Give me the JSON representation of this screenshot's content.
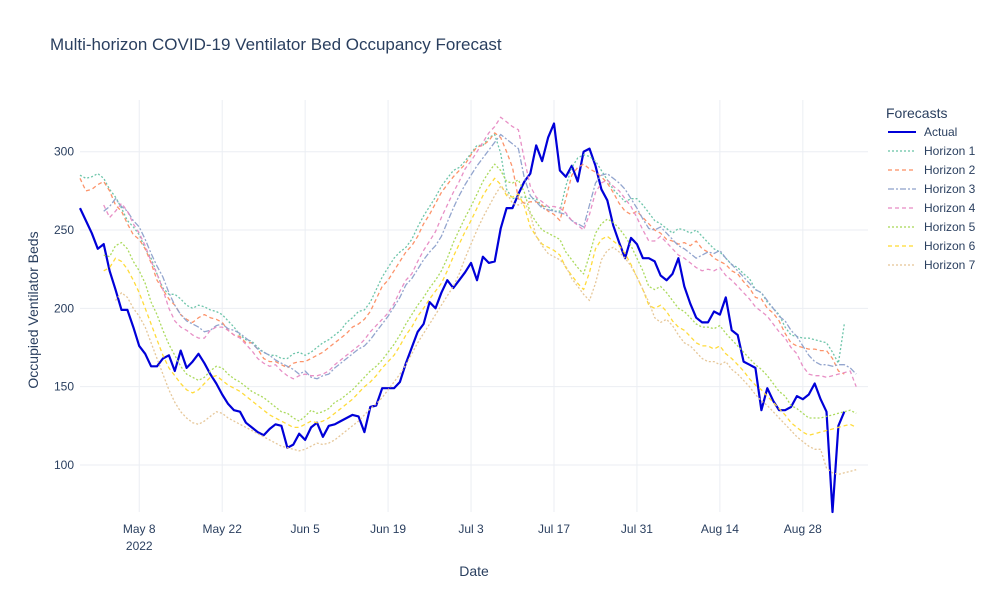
{
  "chart_data": {
    "type": "line",
    "title": "Multi-horizon COVID-19 Ventilator Bed Occupancy Forecast",
    "xlabel": "Date",
    "ylabel": "Occupied Ventilator Beds",
    "x_range": [
      "2022-04-28",
      "2022-09-08"
    ],
    "ylim": [
      70,
      333
    ],
    "x_ticks": [
      {
        "date": "2022-05-08",
        "label": "May 8",
        "sublabel": "2022"
      },
      {
        "date": "2022-05-22",
        "label": "May 22",
        "sublabel": ""
      },
      {
        "date": "2022-06-05",
        "label": "Jun 5",
        "sublabel": ""
      },
      {
        "date": "2022-06-19",
        "label": "Jun 19",
        "sublabel": ""
      },
      {
        "date": "2022-07-03",
        "label": "Jul 3",
        "sublabel": ""
      },
      {
        "date": "2022-07-17",
        "label": "Jul 17",
        "sublabel": ""
      },
      {
        "date": "2022-07-31",
        "label": "Jul 31",
        "sublabel": ""
      },
      {
        "date": "2022-08-14",
        "label": "Aug 14",
        "sublabel": ""
      },
      {
        "date": "2022-08-28",
        "label": "Aug 28",
        "sublabel": ""
      }
    ],
    "y_ticks": [
      100,
      150,
      200,
      250,
      300
    ],
    "grid": true,
    "legend": {
      "title": "Forecasts",
      "position": "right"
    },
    "series": [
      {
        "name": "Actual",
        "color": "#0000d8",
        "dash": "solid",
        "width": 2.2,
        "start": "2022-04-28",
        "values": [
          264,
          256,
          248,
          238,
          241,
          224,
          212,
          199,
          199,
          188,
          176,
          171,
          163,
          163,
          168,
          170,
          160,
          173,
          162,
          166,
          171,
          165,
          158,
          152,
          145,
          139,
          135,
          134,
          127,
          124,
          121,
          119,
          123,
          126,
          125,
          111,
          113,
          120,
          116,
          124,
          127,
          118,
          125,
          126,
          128,
          130,
          132,
          131,
          121,
          137,
          138,
          149,
          149,
          149,
          153,
          165,
          175,
          185,
          190,
          204,
          200,
          210,
          218,
          213,
          218,
          223,
          229,
          218,
          233,
          229,
          230,
          251,
          264,
          264,
          273,
          281,
          286,
          304,
          294,
          309,
          318,
          288,
          284,
          291,
          281,
          300,
          302,
          291,
          276,
          269,
          253,
          242,
          232,
          245,
          241,
          232,
          232,
          230,
          221,
          218,
          222,
          232,
          214,
          203,
          194,
          191,
          191,
          198,
          196,
          207,
          186,
          183,
          166,
          164,
          162,
          135,
          149,
          141,
          135,
          135,
          137,
          144,
          142,
          145,
          152,
          142,
          134,
          70,
          125,
          134
        ]
      },
      {
        "name": "Horizon 1",
        "color": "#66c2a5",
        "dash": "dotted",
        "width": 1.3,
        "start": "2022-04-28",
        "values": [
          285,
          283,
          284,
          286,
          283,
          276,
          271,
          264,
          256,
          252,
          247,
          238,
          232,
          222,
          213,
          209,
          209,
          206,
          202,
          200,
          202,
          201,
          199,
          198,
          196,
          192,
          188,
          183,
          180,
          179,
          175,
          172,
          170,
          170,
          168,
          168,
          171,
          172,
          170,
          172,
          175,
          178,
          180,
          183,
          186,
          191,
          194,
          198,
          199,
          204,
          212,
          220,
          226,
          232,
          236,
          239,
          244,
          252,
          259,
          265,
          271,
          278,
          283,
          288,
          290,
          294,
          299,
          304,
          304,
          309,
          311,
          299,
          276,
          270,
          271,
          271,
          270,
          270,
          265,
          265,
          262,
          262,
          278,
          290,
          296,
          298,
          297,
          294,
          288,
          282,
          276,
          272,
          268,
          270,
          270,
          266,
          261,
          256,
          254,
          251,
          248,
          251,
          250,
          248,
          250,
          246,
          242,
          238,
          236,
          232,
          228,
          226,
          222,
          219,
          212,
          210,
          204,
          200,
          196,
          188,
          183,
          182,
          181,
          181,
          180,
          179,
          178,
          172,
          165,
          190
        ]
      },
      {
        "name": "Horizon 2",
        "color": "#fc8d62",
        "dash": "dashed",
        "width": 1.3,
        "start": "2022-04-28",
        "values": [
          283,
          275,
          276,
          279,
          281,
          275,
          266,
          262,
          254,
          247,
          244,
          238,
          229,
          218,
          212,
          206,
          202,
          196,
          193,
          191,
          194,
          196,
          194,
          193,
          191,
          186,
          183,
          182,
          178,
          178,
          174,
          168,
          166,
          166,
          164,
          162,
          165,
          166,
          166,
          168,
          170,
          172,
          175,
          178,
          181,
          184,
          188,
          190,
          193,
          198,
          206,
          214,
          218,
          224,
          230,
          236,
          240,
          246,
          254,
          260,
          267,
          274,
          279,
          284,
          288,
          292,
          298,
          303,
          304,
          307,
          312,
          309,
          300,
          290,
          270,
          267,
          268,
          268,
          266,
          262,
          260,
          256,
          270,
          285,
          290,
          292,
          289,
          287,
          284,
          280,
          274,
          267,
          262,
          260,
          262,
          258,
          254,
          250,
          248,
          244,
          243,
          241,
          242,
          240,
          243,
          238,
          236,
          232,
          230,
          228,
          224,
          222,
          217,
          213,
          207,
          206,
          200,
          197,
          192,
          184,
          178,
          176,
          175,
          174,
          174,
          173,
          173,
          168,
          160,
          158
        ]
      },
      {
        "name": "Horizon 3",
        "color": "#8da0cb",
        "dash": "dashdot",
        "width": 1.3,
        "start": "2022-05-02",
        "values": [
          262,
          265,
          270,
          265,
          262,
          256,
          252,
          244,
          235,
          227,
          220,
          210,
          202,
          196,
          192,
          190,
          188,
          185,
          186,
          189,
          190,
          187,
          186,
          184,
          181,
          178,
          174,
          172,
          170,
          167,
          165,
          163,
          161,
          158,
          160,
          156,
          155,
          157,
          158,
          162,
          165,
          168,
          171,
          174,
          176,
          180,
          185,
          190,
          195,
          201,
          207,
          215,
          219,
          225,
          231,
          236,
          240,
          246,
          255,
          264,
          272,
          279,
          285,
          291,
          296,
          301,
          306,
          311,
          308,
          305,
          302,
          283,
          272,
          268,
          264,
          263,
          262,
          261,
          260,
          256,
          254,
          252,
          266,
          280,
          285,
          286,
          283,
          280,
          276,
          270,
          264,
          257,
          251,
          250,
          252,
          248,
          244,
          240,
          238,
          235,
          232,
          234,
          236,
          235,
          237,
          232,
          228,
          224,
          220,
          216,
          212,
          210,
          205,
          200,
          195,
          192,
          186,
          182,
          176,
          170,
          166,
          164,
          164,
          163,
          164,
          164,
          162,
          158
        ]
      },
      {
        "name": "Horizon 4",
        "color": "#e78ac3",
        "dash": "dashed",
        "width": 1.3,
        "start": "2022-05-02",
        "values": [
          266,
          258,
          262,
          267,
          262,
          254,
          248,
          240,
          230,
          222,
          212,
          200,
          192,
          188,
          186,
          183,
          181,
          181,
          186,
          188,
          188,
          186,
          183,
          181,
          177,
          173,
          168,
          165,
          163,
          164,
          160,
          157,
          155,
          157,
          158,
          157,
          157,
          158,
          160,
          164,
          167,
          170,
          173,
          176,
          180,
          185,
          189,
          193,
          197,
          203,
          211,
          218,
          222,
          230,
          237,
          243,
          249,
          258,
          266,
          274,
          281,
          289,
          294,
          300,
          306,
          312,
          316,
          322,
          319,
          316,
          314,
          295,
          278,
          271,
          268,
          265,
          265,
          264,
          261,
          256,
          253,
          250,
          260,
          274,
          280,
          282,
          278,
          275,
          270,
          265,
          258,
          250,
          243,
          243,
          246,
          242,
          238,
          234,
          232,
          229,
          226,
          224,
          225,
          224,
          226,
          221,
          218,
          214,
          210,
          206,
          201,
          198,
          195,
          190,
          185,
          181,
          175,
          171,
          163,
          158,
          157,
          157,
          156,
          157,
          158,
          159,
          160,
          150
        ]
      },
      {
        "name": "Horizon 5",
        "color": "#a6d854",
        "dash": "dotted",
        "width": 1.3,
        "start": "2022-05-02",
        "values": [
          234,
          233,
          240,
          242,
          238,
          230,
          224,
          216,
          204,
          196,
          186,
          177,
          170,
          163,
          158,
          156,
          154,
          156,
          160,
          163,
          162,
          158,
          155,
          153,
          150,
          147,
          145,
          143,
          140,
          137,
          134,
          133,
          130,
          128,
          131,
          135,
          133,
          134,
          136,
          140,
          142,
          145,
          148,
          152,
          156,
          160,
          163,
          167,
          172,
          177,
          183,
          190,
          196,
          202,
          207,
          213,
          218,
          224,
          232,
          242,
          250,
          258,
          265,
          273,
          281,
          287,
          292,
          288,
          281,
          280,
          282,
          274,
          261,
          255,
          250,
          248,
          246,
          244,
          236,
          231,
          226,
          222,
          234,
          248,
          254,
          257,
          255,
          251,
          246,
          240,
          232,
          224,
          214,
          212,
          214,
          210,
          205,
          200,
          198,
          194,
          190,
          188,
          188,
          187,
          189,
          184,
          180,
          176,
          172,
          168,
          164,
          161,
          157,
          152,
          147,
          144,
          138,
          136,
          133,
          130,
          130,
          130,
          131,
          132,
          133,
          134,
          135,
          133
        ]
      },
      {
        "name": "Horizon 6",
        "color": "#ffd92f",
        "dash": "dashed",
        "width": 1.3,
        "start": "2022-05-02",
        "values": [
          224,
          226,
          232,
          230,
          225,
          218,
          210,
          200,
          190,
          180,
          170,
          162,
          157,
          152,
          148,
          146,
          148,
          152,
          156,
          157,
          154,
          151,
          149,
          147,
          144,
          141,
          138,
          135,
          132,
          130,
          128,
          126,
          124,
          124,
          126,
          128,
          127,
          128,
          130,
          133,
          136,
          139,
          142,
          146,
          150,
          153,
          157,
          162,
          166,
          170,
          176,
          183,
          188,
          195,
          200,
          206,
          211,
          216,
          224,
          233,
          241,
          249,
          256,
          264,
          272,
          278,
          283,
          279,
          272,
          271,
          273,
          265,
          252,
          246,
          241,
          239,
          237,
          234,
          226,
          221,
          216,
          212,
          223,
          238,
          244,
          246,
          243,
          240,
          235,
          228,
          220,
          212,
          202,
          200,
          202,
          198,
          192,
          188,
          186,
          182,
          178,
          176,
          176,
          174,
          176,
          171,
          168,
          164,
          160,
          155,
          151,
          148,
          144,
          140,
          136,
          132,
          127,
          124,
          121,
          119,
          120,
          121,
          122,
          123,
          124,
          125,
          126,
          124
        ]
      },
      {
        "name": "Horizon 7",
        "color": "#e5c494",
        "dash": "dotted",
        "width": 1.3,
        "start": "2022-05-04",
        "values": [
          205,
          210,
          207,
          200,
          195,
          188,
          178,
          168,
          158,
          148,
          140,
          134,
          130,
          127,
          126,
          128,
          131,
          134,
          133,
          130,
          128,
          126,
          124,
          122,
          120,
          118,
          116,
          114,
          112,
          111,
          110,
          109,
          110,
          112,
          114,
          113,
          114,
          116,
          119,
          122,
          125,
          128,
          132,
          136,
          139,
          143,
          148,
          153,
          158,
          164,
          171,
          178,
          184,
          190,
          196,
          202,
          208,
          214,
          222,
          232,
          241,
          250,
          258,
          265,
          272,
          278,
          274,
          267,
          266,
          268,
          260,
          246,
          240,
          235,
          233,
          231,
          227,
          219,
          214,
          209,
          205,
          216,
          231,
          237,
          239,
          236,
          232,
          227,
          220,
          212,
          204,
          194,
          191,
          193,
          189,
          183,
          178,
          176,
          172,
          168,
          166,
          166,
          164,
          166,
          161,
          158,
          154,
          150,
          145,
          141,
          138,
          134,
          130,
          126,
          122,
          118,
          115,
          112,
          110,
          110,
          98,
          95,
          94,
          95,
          96,
          97
        ]
      }
    ]
  }
}
